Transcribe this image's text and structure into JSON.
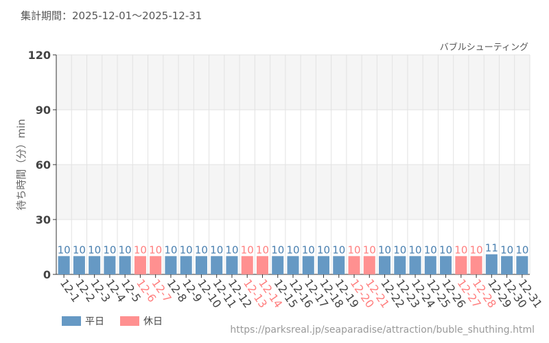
{
  "period_label": "集計期間：2025-12-01〜2025-12-31",
  "url": "https://parksreal.jp/seaparadise/attraction/buble_shuthing.html",
  "colors": {
    "weekday": "#6699c4",
    "holiday": "#ff9090",
    "weekday_text": "#4a80b0",
    "holiday_text": "#ff7f7f"
  },
  "chart_data": {
    "type": "bar",
    "title": "バブルシューティング",
    "ylabel": "待ち時間（分）min",
    "ylim": [
      0,
      120
    ],
    "yticks": [
      "0",
      "30",
      "60",
      "90",
      "120"
    ],
    "categories": [
      "12-1",
      "12-2",
      "12-3",
      "12-4",
      "12-5",
      "12-6",
      "12-7",
      "12-8",
      "12-9",
      "12-10",
      "12-11",
      "12-12",
      "12-13",
      "12-14",
      "12-15",
      "12-16",
      "12-17",
      "12-18",
      "12-19",
      "12-20",
      "12-21",
      "12-22",
      "12-23",
      "12-24",
      "12-25",
      "12-26",
      "12-27",
      "12-28",
      "12-29",
      "12-30",
      "12-31"
    ],
    "values": [
      10,
      10,
      10,
      10,
      10,
      10,
      10,
      10,
      10,
      10,
      10,
      10,
      10,
      10,
      10,
      10,
      10,
      10,
      10,
      10,
      10,
      10,
      10,
      10,
      10,
      10,
      10,
      10,
      11,
      10,
      10
    ],
    "day_type": [
      "w",
      "w",
      "w",
      "w",
      "w",
      "h",
      "h",
      "w",
      "w",
      "w",
      "w",
      "w",
      "h",
      "h",
      "w",
      "w",
      "w",
      "w",
      "w",
      "h",
      "h",
      "w",
      "w",
      "w",
      "w",
      "w",
      "h",
      "h",
      "w",
      "w",
      "w"
    ],
    "legend": [
      {
        "key": "w",
        "label": "平日"
      },
      {
        "key": "h",
        "label": "休日"
      }
    ]
  }
}
